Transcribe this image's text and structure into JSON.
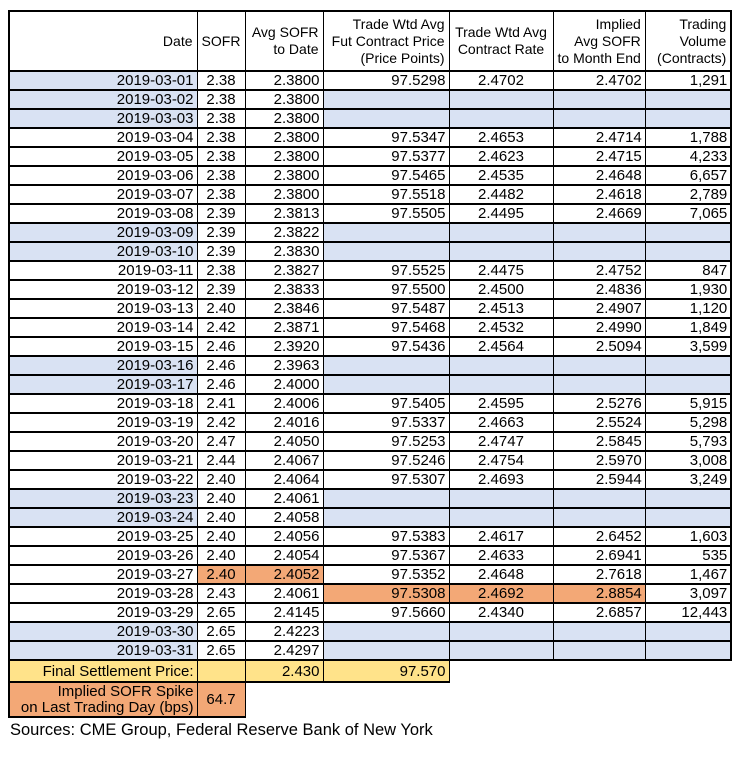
{
  "colors": {
    "weekend_blue": "#D9E2F3",
    "highlight_orange": "#F3A876",
    "settlement_yellow": "#FFE38A",
    "grid_border": "#000000"
  },
  "table": {
    "columns": [
      {
        "id": "date",
        "lines": [
          "Date"
        ],
        "align": "right"
      },
      {
        "id": "sofr",
        "lines": [
          "SOFR"
        ],
        "align": "center"
      },
      {
        "id": "avg_sofr",
        "lines": [
          "Avg SOFR",
          "to Date"
        ],
        "align": "right"
      },
      {
        "id": "fut_price",
        "lines": [
          "Trade Wtd Avg",
          "Fut Contract Price",
          "(Price Points)"
        ],
        "align": "right"
      },
      {
        "id": "contract_rate",
        "lines": [
          "Trade Wtd Avg",
          "Contract Rate"
        ],
        "align": "center"
      },
      {
        "id": "implied_avg",
        "lines": [
          "Implied",
          "Avg SOFR",
          "to Month End"
        ],
        "align": "right"
      },
      {
        "id": "volume",
        "lines": [
          "Trading",
          "Volume",
          "(Contracts)"
        ],
        "align": "right"
      }
    ],
    "rows": [
      {
        "cells": [
          "2019-03-01",
          "2.38",
          "2.3800",
          "97.5298",
          "2.4702",
          "2.4702",
          "1,291"
        ],
        "date_shaded": true,
        "weekend": false,
        "hl": []
      },
      {
        "cells": [
          "2019-03-02",
          "2.38",
          "2.3800",
          "",
          "",
          "",
          ""
        ],
        "date_shaded": true,
        "weekend": true,
        "hl": []
      },
      {
        "cells": [
          "2019-03-03",
          "2.38",
          "2.3800",
          "",
          "",
          "",
          ""
        ],
        "date_shaded": true,
        "weekend": true,
        "hl": []
      },
      {
        "cells": [
          "2019-03-04",
          "2.38",
          "2.3800",
          "97.5347",
          "2.4653",
          "2.4714",
          "1,788"
        ],
        "date_shaded": false,
        "weekend": false,
        "hl": []
      },
      {
        "cells": [
          "2019-03-05",
          "2.38",
          "2.3800",
          "97.5377",
          "2.4623",
          "2.4715",
          "4,233"
        ],
        "date_shaded": false,
        "weekend": false,
        "hl": []
      },
      {
        "cells": [
          "2019-03-06",
          "2.38",
          "2.3800",
          "97.5465",
          "2.4535",
          "2.4648",
          "6,657"
        ],
        "date_shaded": false,
        "weekend": false,
        "hl": []
      },
      {
        "cells": [
          "2019-03-07",
          "2.38",
          "2.3800",
          "97.5518",
          "2.4482",
          "2.4618",
          "2,789"
        ],
        "date_shaded": false,
        "weekend": false,
        "hl": []
      },
      {
        "cells": [
          "2019-03-08",
          "2.39",
          "2.3813",
          "97.5505",
          "2.4495",
          "2.4669",
          "7,065"
        ],
        "date_shaded": false,
        "weekend": false,
        "hl": []
      },
      {
        "cells": [
          "2019-03-09",
          "2.39",
          "2.3822",
          "",
          "",
          "",
          ""
        ],
        "date_shaded": true,
        "weekend": true,
        "hl": []
      },
      {
        "cells": [
          "2019-03-10",
          "2.39",
          "2.3830",
          "",
          "",
          "",
          ""
        ],
        "date_shaded": true,
        "weekend": true,
        "hl": []
      },
      {
        "cells": [
          "2019-03-11",
          "2.38",
          "2.3827",
          "97.5525",
          "2.4475",
          "2.4752",
          "847"
        ],
        "date_shaded": false,
        "weekend": false,
        "hl": []
      },
      {
        "cells": [
          "2019-03-12",
          "2.39",
          "2.3833",
          "97.5500",
          "2.4500",
          "2.4836",
          "1,930"
        ],
        "date_shaded": false,
        "weekend": false,
        "hl": []
      },
      {
        "cells": [
          "2019-03-13",
          "2.40",
          "2.3846",
          "97.5487",
          "2.4513",
          "2.4907",
          "1,120"
        ],
        "date_shaded": false,
        "weekend": false,
        "hl": []
      },
      {
        "cells": [
          "2019-03-14",
          "2.42",
          "2.3871",
          "97.5468",
          "2.4532",
          "2.4990",
          "1,849"
        ],
        "date_shaded": false,
        "weekend": false,
        "hl": []
      },
      {
        "cells": [
          "2019-03-15",
          "2.46",
          "2.3920",
          "97.5436",
          "2.4564",
          "2.5094",
          "3,599"
        ],
        "date_shaded": false,
        "weekend": false,
        "hl": []
      },
      {
        "cells": [
          "2019-03-16",
          "2.46",
          "2.3963",
          "",
          "",
          "",
          ""
        ],
        "date_shaded": true,
        "weekend": true,
        "hl": []
      },
      {
        "cells": [
          "2019-03-17",
          "2.46",
          "2.4000",
          "",
          "",
          "",
          ""
        ],
        "date_shaded": true,
        "weekend": true,
        "hl": []
      },
      {
        "cells": [
          "2019-03-18",
          "2.41",
          "2.4006",
          "97.5405",
          "2.4595",
          "2.5276",
          "5,915"
        ],
        "date_shaded": false,
        "weekend": false,
        "hl": []
      },
      {
        "cells": [
          "2019-03-19",
          "2.42",
          "2.4016",
          "97.5337",
          "2.4663",
          "2.5524",
          "5,298"
        ],
        "date_shaded": false,
        "weekend": false,
        "hl": []
      },
      {
        "cells": [
          "2019-03-20",
          "2.47",
          "2.4050",
          "97.5253",
          "2.4747",
          "2.5845",
          "5,793"
        ],
        "date_shaded": false,
        "weekend": false,
        "hl": []
      },
      {
        "cells": [
          "2019-03-21",
          "2.44",
          "2.4067",
          "97.5246",
          "2.4754",
          "2.5970",
          "3,008"
        ],
        "date_shaded": false,
        "weekend": false,
        "hl": []
      },
      {
        "cells": [
          "2019-03-22",
          "2.40",
          "2.4064",
          "97.5307",
          "2.4693",
          "2.5944",
          "3,249"
        ],
        "date_shaded": false,
        "weekend": false,
        "hl": []
      },
      {
        "cells": [
          "2019-03-23",
          "2.40",
          "2.4061",
          "",
          "",
          "",
          ""
        ],
        "date_shaded": true,
        "weekend": true,
        "hl": []
      },
      {
        "cells": [
          "2019-03-24",
          "2.40",
          "2.4058",
          "",
          "",
          "",
          ""
        ],
        "date_shaded": true,
        "weekend": true,
        "hl": []
      },
      {
        "cells": [
          "2019-03-25",
          "2.40",
          "2.4056",
          "97.5383",
          "2.4617",
          "2.6452",
          "1,603"
        ],
        "date_shaded": false,
        "weekend": false,
        "hl": []
      },
      {
        "cells": [
          "2019-03-26",
          "2.40",
          "2.4054",
          "97.5367",
          "2.4633",
          "2.6941",
          "535"
        ],
        "date_shaded": false,
        "weekend": false,
        "hl": []
      },
      {
        "cells": [
          "2019-03-27",
          "2.40",
          "2.4052",
          "97.5352",
          "2.4648",
          "2.7618",
          "1,467"
        ],
        "date_shaded": false,
        "weekend": false,
        "hl": [
          1,
          2
        ]
      },
      {
        "cells": [
          "2019-03-28",
          "2.43",
          "2.4061",
          "97.5308",
          "2.4692",
          "2.8854",
          "3,097"
        ],
        "date_shaded": false,
        "weekend": false,
        "hl": [
          3,
          4,
          5
        ]
      },
      {
        "cells": [
          "2019-03-29",
          "2.65",
          "2.4145",
          "97.5660",
          "2.4340",
          "2.6857",
          "12,443"
        ],
        "date_shaded": false,
        "weekend": false,
        "hl": []
      },
      {
        "cells": [
          "2019-03-30",
          "2.65",
          "2.4223",
          "",
          "",
          "",
          ""
        ],
        "date_shaded": true,
        "weekend": true,
        "hl": []
      },
      {
        "cells": [
          "2019-03-31",
          "2.65",
          "2.4297",
          "",
          "",
          "",
          ""
        ],
        "date_shaded": true,
        "weekend": true,
        "hl": []
      }
    ]
  },
  "footer": {
    "final_settlement": {
      "label": "Final Settlement Price:",
      "sofr": "",
      "avg_sofr": "2.430",
      "fut_price": "97.570"
    },
    "implied_spike": {
      "label_line1": "Implied SOFR Spike",
      "label_line2": "on Last Trading Day (bps)",
      "value": "64.7"
    }
  },
  "source_note": "Sources: CME Group, Federal Reserve Bank of New York"
}
